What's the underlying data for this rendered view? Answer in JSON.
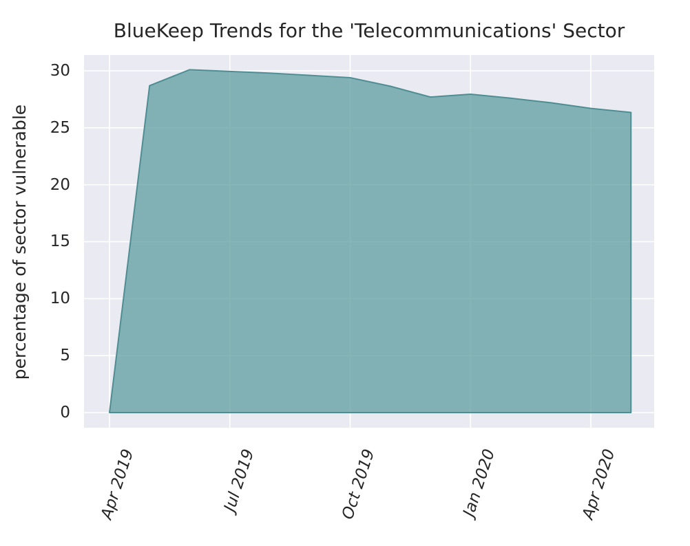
{
  "chart_data": {
    "type": "area",
    "title": "BlueKeep Trends for the 'Telecommunications' Sector",
    "xlabel": "",
    "ylabel": "percentage of sector vulnerable",
    "x": [
      "Apr 2019",
      "May 2019",
      "Jun 2019",
      "Jul 2019",
      "Aug 2019",
      "Sep 2019",
      "Oct 2019",
      "Nov 2019",
      "Dec 2019",
      "Jan 2020",
      "Feb 2020",
      "Mar 2020",
      "Apr 2020",
      "May 2020"
    ],
    "values": [
      0,
      28.7,
      30.1,
      29.95,
      29.8,
      29.6,
      29.4,
      28.65,
      27.7,
      27.95,
      27.6,
      27.2,
      26.7,
      26.35
    ],
    "x_tick_labels": [
      "Apr 2019",
      "Jul 2019",
      "Oct 2019",
      "Jan 2020",
      "Apr 2020"
    ],
    "x_tick_indices": [
      0,
      3,
      6,
      9,
      12
    ],
    "y_ticks": [
      0,
      5,
      10,
      15,
      20,
      25,
      30
    ],
    "ylim": [
      0,
      31.4
    ],
    "grid": true,
    "legend": false,
    "colors": {
      "fill": "rgba(95,158,160,0.75)",
      "line": "#4e8d92",
      "plot_background": "#eaeaf2",
      "gridline": "#ffffff",
      "text": "#262626"
    }
  }
}
